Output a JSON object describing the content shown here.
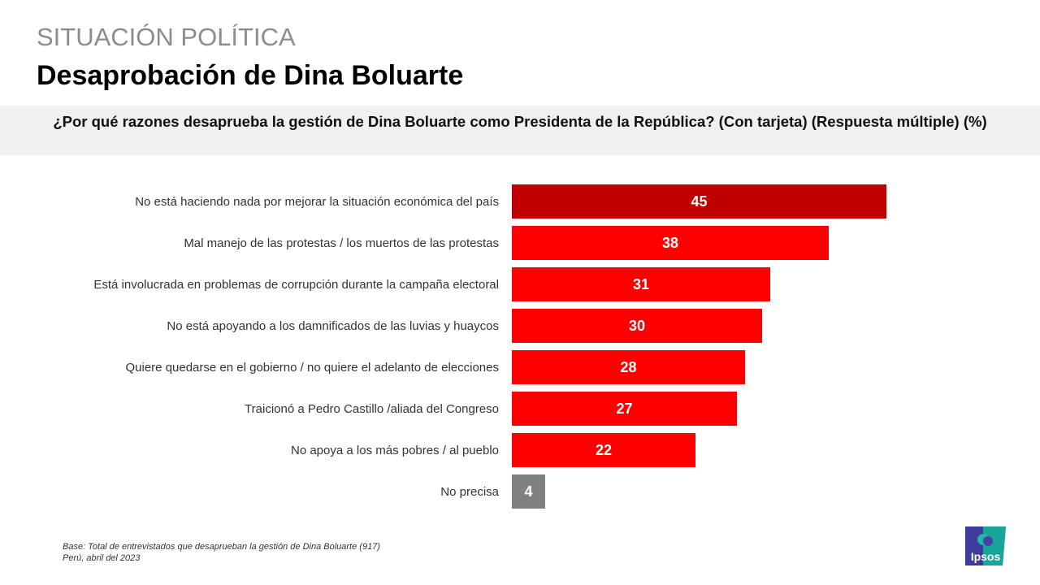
{
  "header": {
    "section": "SITUACIÓN POLÍTICA",
    "title": "Desaprobación de Dina Boluarte"
  },
  "question": "¿Por qué razones desaprueba la gestión de Dina Boluarte como Presidenta de la República? (Con tarjeta) (Respuesta múltiple) (%)",
  "footnote": {
    "base": "Base: Total  de entrevistados  que desaprueban la gestión de Dina Boluarte (917)",
    "place_date": "Perú, abril del 2023"
  },
  "logo": {
    "text": "Ipsos"
  },
  "colors": {
    "highlight": "#c00000",
    "bar": "#ff0000",
    "neutral": "#808080"
  },
  "chart_data": {
    "type": "bar",
    "orientation": "horizontal",
    "title": "¿Por qué razones desaprueba la gestión de Dina Boluarte como Presidenta de la República? (Con tarjeta) (Respuesta múltiple) (%)",
    "xlabel": "",
    "ylabel": "",
    "xlim": [
      0,
      45
    ],
    "grid": false,
    "legend": "none",
    "categories": [
      "No está haciendo nada por mejorar la situación económica del país",
      "Mal manejo de las protestas / los muertos de las protestas",
      "Está involucrada en problemas de corrupción durante la campaña electoral",
      "No está apoyando a los damnificados de las luvias y huaycos",
      "Quiere quedarse en el gobierno / no quiere el adelanto de elecciones",
      "Traicionó a Pedro Castillo /aliada del Congreso",
      "No apoya a los más pobres / al pueblo",
      "No precisa"
    ],
    "values": [
      45,
      38,
      31,
      30,
      28,
      27,
      22,
      4
    ],
    "bar_colors": [
      "#c00000",
      "#ff0000",
      "#ff0000",
      "#ff0000",
      "#ff0000",
      "#ff0000",
      "#ff0000",
      "#808080"
    ]
  }
}
